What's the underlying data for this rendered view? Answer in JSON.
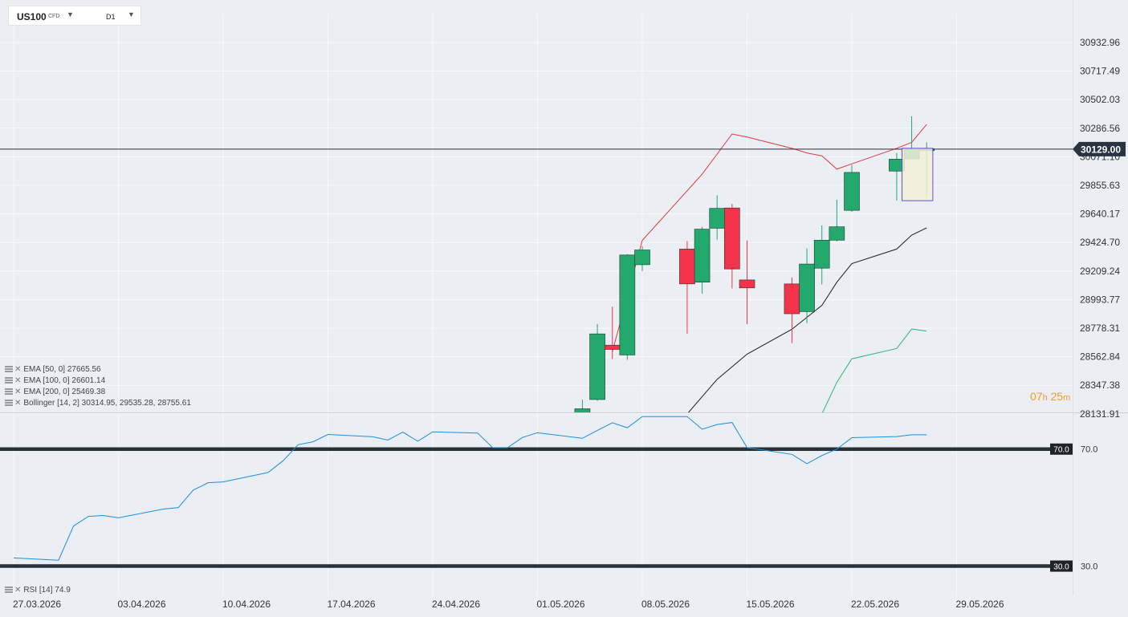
{
  "header": {
    "symbol": "US100",
    "instrument_type": "CFD",
    "timeframe": "D1"
  },
  "indicators_legend": [
    {
      "label": "EMA [50, 0] 27665.56"
    },
    {
      "label": "EMA [100, 0] 26601.14"
    },
    {
      "label": "EMA [200, 0] 25469.38"
    },
    {
      "label": "Bollinger [14, 2] 30314.95, 29535.28, 28755.61"
    }
  ],
  "rsi_legend": {
    "label": "RSI [14] 74.9"
  },
  "countdown": {
    "hours": "07",
    "h_unit": "h",
    "minutes": "25",
    "m_unit": "m"
  },
  "colors": {
    "up_candle": "#23a86e",
    "down_candle": "#f5334b",
    "bollinger_upper": "#e0393e",
    "bollinger_middle": "#1e1e1e",
    "bollinger_lower": "#2bb673",
    "rsi_line": "#1a8fe3",
    "last_price_tag": "#2a3440",
    "selection_border": "#6a4bd6",
    "selection_fill": "#f2f0d8"
  },
  "chart_data": {
    "type": "candlestick",
    "price_axis_ticks": [
      "30932.96",
      "30717.49",
      "30502.03",
      "30286.56",
      "30071.10",
      "29855.63",
      "29640.17",
      "29424.70",
      "29209.24",
      "28993.77",
      "28778.31",
      "28562.84",
      "28347.38",
      "28131.91"
    ],
    "last_price": 30129.0,
    "last_price_label": "30129.00",
    "date_axis_labels": [
      "27.03.2026",
      "03.04.2026",
      "10.04.2026",
      "17.04.2026",
      "24.04.2026",
      "01.05.2026",
      "08.05.2026",
      "15.05.2026",
      "22.05.2026",
      "29.05.2026"
    ],
    "candles": [
      {
        "date": "04.05.2026",
        "open": 28100,
        "high": 28238,
        "low": 28100,
        "close": 28170
      },
      {
        "date": "05.05.2026",
        "open": 28240,
        "high": 28810,
        "low": 28230,
        "close": 28735
      },
      {
        "date": "06.05.2026",
        "open": 28650,
        "high": 28940,
        "low": 28545,
        "close": 28618
      },
      {
        "date": "07.05.2026",
        "open": 28576,
        "high": 29336,
        "low": 28540,
        "close": 29330
      },
      {
        "date": "08.05.2026",
        "open": 29257,
        "high": 29397,
        "low": 29207,
        "close": 29368
      },
      {
        "date": "11.05.2026",
        "open": 29375,
        "high": 29435,
        "low": 28737,
        "close": 29112
      },
      {
        "date": "12.05.2026",
        "open": 29125,
        "high": 29543,
        "low": 29038,
        "close": 29525
      },
      {
        "date": "13.05.2026",
        "open": 29532,
        "high": 29781,
        "low": 29445,
        "close": 29682
      },
      {
        "date": "14.05.2026",
        "open": 29685,
        "high": 29715,
        "low": 29078,
        "close": 29225
      },
      {
        "date": "15.05.2026",
        "open": 29142,
        "high": 29440,
        "low": 28808,
        "close": 29082
      },
      {
        "date": "18.05.2026",
        "open": 29112,
        "high": 29160,
        "low": 28665,
        "close": 28887
      },
      {
        "date": "19.05.2026",
        "open": 28903,
        "high": 29380,
        "low": 28817,
        "close": 29262
      },
      {
        "date": "20.05.2026",
        "open": 29231,
        "high": 29553,
        "low": 29108,
        "close": 29442
      },
      {
        "date": "21.05.2026",
        "open": 29442,
        "high": 29747,
        "low": 29432,
        "close": 29543
      },
      {
        "date": "22.05.2026",
        "open": 29667,
        "high": 30009,
        "low": 29657,
        "close": 29953
      },
      {
        "date": "25.05.2026",
        "open": 29963,
        "high": 30100,
        "low": 29740,
        "close": 30053
      },
      {
        "date": "26.05.2026",
        "open": 30055,
        "high": 30376,
        "low": 30055,
        "close": 30131
      },
      {
        "date": "27.05.2026",
        "open": 30119,
        "high": 30180,
        "low": 29763,
        "close": 30132
      }
    ],
    "bollinger_upper": [
      {
        "date": "06.05.2026",
        "value": 28600
      },
      {
        "date": "08.05.2026",
        "value": 29440
      },
      {
        "date": "12.05.2026",
        "value": 29940
      },
      {
        "date": "14.05.2026",
        "value": 30243
      },
      {
        "date": "15.05.2026",
        "value": 30220
      },
      {
        "date": "18.05.2026",
        "value": 30135
      },
      {
        "date": "19.05.2026",
        "value": 30100
      },
      {
        "date": "20.05.2026",
        "value": 30078
      },
      {
        "date": "21.05.2026",
        "value": 29978
      },
      {
        "date": "22.05.2026",
        "value": 30018
      },
      {
        "date": "25.05.2026",
        "value": 30135
      },
      {
        "date": "26.05.2026",
        "value": 30180
      },
      {
        "date": "27.05.2026",
        "value": 30315
      }
    ],
    "bollinger_middle": [
      {
        "date": "11.05.2026",
        "value": 28131
      },
      {
        "date": "13.05.2026",
        "value": 28392
      },
      {
        "date": "15.05.2026",
        "value": 28582
      },
      {
        "date": "18.05.2026",
        "value": 28770
      },
      {
        "date": "20.05.2026",
        "value": 28950
      },
      {
        "date": "21.05.2026",
        "value": 29125
      },
      {
        "date": "22.05.2026",
        "value": 29265
      },
      {
        "date": "25.05.2026",
        "value": 29375
      },
      {
        "date": "26.05.2026",
        "value": 29480
      },
      {
        "date": "27.05.2026",
        "value": 29535
      }
    ],
    "bollinger_lower": [
      {
        "date": "20.05.2026",
        "value": 28131
      },
      {
        "date": "21.05.2026",
        "value": 28370
      },
      {
        "date": "22.05.2026",
        "value": 28547
      },
      {
        "date": "25.05.2026",
        "value": 28625
      },
      {
        "date": "26.05.2026",
        "value": 28772
      },
      {
        "date": "27.05.2026",
        "value": 28756
      }
    ],
    "rsi_levels": [
      {
        "value": 70,
        "label": "70.0"
      },
      {
        "value": 30,
        "label": "30.0"
      }
    ],
    "rsi_ylim": [
      20,
      82
    ],
    "rsi": [
      {
        "date": "27.03.2026",
        "value": 32.8
      },
      {
        "date": "30.03.2026",
        "value": 32.0
      },
      {
        "date": "31.03.2026",
        "value": 43.7
      },
      {
        "date": "01.04.2026",
        "value": 47.0
      },
      {
        "date": "02.04.2026",
        "value": 47.3
      },
      {
        "date": "03.04.2026",
        "value": 46.5
      },
      {
        "date": "06.04.2026",
        "value": 49.5
      },
      {
        "date": "07.04.2026",
        "value": 50.0
      },
      {
        "date": "08.04.2026",
        "value": 56.0
      },
      {
        "date": "09.04.2026",
        "value": 58.5
      },
      {
        "date": "10.04.2026",
        "value": 58.8
      },
      {
        "date": "13.04.2026",
        "value": 62.0
      },
      {
        "date": "14.04.2026",
        "value": 66.0
      },
      {
        "date": "15.04.2026",
        "value": 71.5
      },
      {
        "date": "16.04.2026",
        "value": 72.5
      },
      {
        "date": "17.04.2026",
        "value": 75.0
      },
      {
        "date": "20.04.2026",
        "value": 74.2
      },
      {
        "date": "21.04.2026",
        "value": 73.1
      },
      {
        "date": "22.04.2026",
        "value": 75.8
      },
      {
        "date": "23.04.2026",
        "value": 72.7
      },
      {
        "date": "24.04.2026",
        "value": 75.9
      },
      {
        "date": "27.04.2026",
        "value": 75.5
      },
      {
        "date": "28.04.2026",
        "value": 70.5
      },
      {
        "date": "29.04.2026",
        "value": 70.5
      },
      {
        "date": "30.04.2026",
        "value": 74.0
      },
      {
        "date": "01.05.2026",
        "value": 75.6
      },
      {
        "date": "04.05.2026",
        "value": 73.7
      },
      {
        "date": "05.05.2026",
        "value": 76.4
      },
      {
        "date": "06.05.2026",
        "value": 79.0
      },
      {
        "date": "07.05.2026",
        "value": 77.3
      },
      {
        "date": "08.05.2026",
        "value": 81.1
      },
      {
        "date": "11.05.2026",
        "value": 81.1
      },
      {
        "date": "12.05.2026",
        "value": 76.8
      },
      {
        "date": "13.05.2026",
        "value": 78.4
      },
      {
        "date": "14.05.2026",
        "value": 79.1
      },
      {
        "date": "15.05.2026",
        "value": 70.5
      },
      {
        "date": "18.05.2026",
        "value": 68.2
      },
      {
        "date": "19.05.2026",
        "value": 65.0
      },
      {
        "date": "20.05.2026",
        "value": 67.8
      },
      {
        "date": "21.05.2026",
        "value": 70.0
      },
      {
        "date": "22.05.2026",
        "value": 73.9
      },
      {
        "date": "25.05.2026",
        "value": 74.3
      },
      {
        "date": "26.05.2026",
        "value": 74.9
      },
      {
        "date": "27.05.2026",
        "value": 74.9
      }
    ],
    "highlight_box": {
      "from_date": "26.05.2026",
      "to_date": "28.05.2026",
      "high": 30135,
      "low": 29740
    }
  }
}
